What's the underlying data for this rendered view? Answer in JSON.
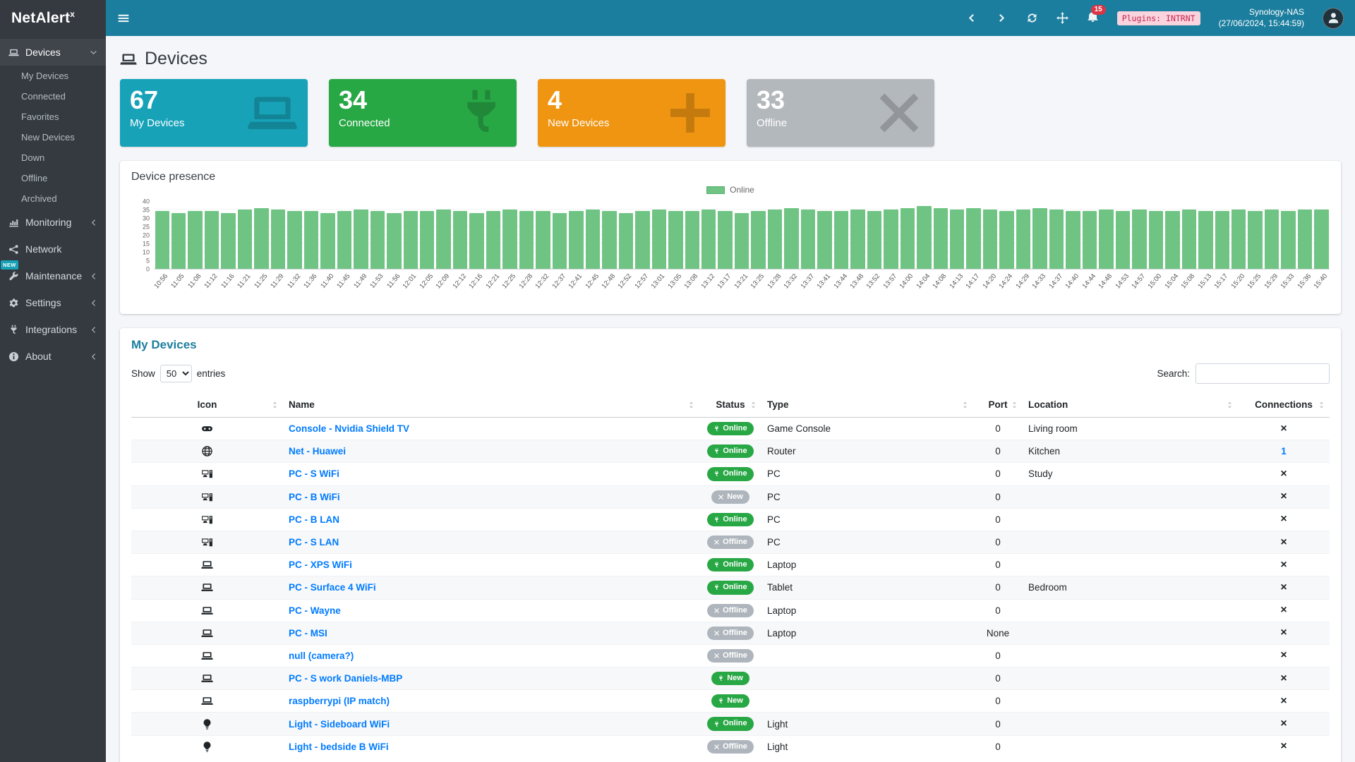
{
  "navbar": {
    "brand_main": "NetAlert",
    "brand_sup": "x",
    "bell_count": "15",
    "plugins_badge": "Plugins: INTRNT",
    "host": "Synology-NAS",
    "timestamp": "(27/06/2024, 15:44:59)"
  },
  "sidebar": {
    "items": [
      {
        "label": "Devices",
        "icon": "laptop-icon",
        "chevron": "down",
        "active": true,
        "children": [
          "My Devices",
          "Connected",
          "Favorites",
          "New Devices",
          "Down",
          "Offline",
          "Archived"
        ]
      },
      {
        "label": "Monitoring",
        "icon": "chart-icon",
        "chevron": "left"
      },
      {
        "label": "Network",
        "icon": "network-icon",
        "chevron": null
      },
      {
        "label": "Maintenance",
        "icon": "tools-icon",
        "chevron": "left",
        "badge": "NEW"
      },
      {
        "label": "Settings",
        "icon": "gear-icon",
        "chevron": "left"
      },
      {
        "label": "Integrations",
        "icon": "plug-icon",
        "chevron": "left"
      },
      {
        "label": "About",
        "icon": "info-icon",
        "chevron": "left"
      }
    ]
  },
  "page": {
    "title": "Devices"
  },
  "infoboxes": [
    {
      "value": "67",
      "label": "My Devices",
      "color": "#17a2b8",
      "icon": "laptop-icon"
    },
    {
      "value": "34",
      "label": "Connected",
      "color": "#28a745",
      "icon": "plug-icon"
    },
    {
      "value": "4",
      "label": "New Devices",
      "color": "#f09511",
      "icon": "plus-icon"
    },
    {
      "value": "33",
      "label": "Offline",
      "color": "#b3b8bc",
      "icon": "times-icon"
    }
  ],
  "chart_card": {
    "title": "Device presence"
  },
  "chart_data": {
    "type": "bar",
    "title": "Device presence",
    "legend": [
      {
        "name": "Online",
        "color": "#6fc484"
      }
    ],
    "legend_position": "top-center",
    "xlabel": "",
    "ylabel": "",
    "ylim": [
      0,
      40
    ],
    "ytick_step": 5,
    "grid": true,
    "x": [
      "10:56",
      "11:05",
      "11:08",
      "11:12",
      "11:16",
      "11:21",
      "11:25",
      "11:29",
      "11:32",
      "11:36",
      "11:40",
      "11:45",
      "11:49",
      "11:53",
      "11:56",
      "12:01",
      "12:05",
      "12:09",
      "12:12",
      "12:16",
      "12:21",
      "12:25",
      "12:28",
      "12:32",
      "12:37",
      "12:41",
      "12:45",
      "12:48",
      "12:52",
      "12:57",
      "13:01",
      "13:05",
      "13:08",
      "13:12",
      "13:17",
      "13:21",
      "13:25",
      "13:28",
      "13:32",
      "13:37",
      "13:41",
      "13:44",
      "13:48",
      "13:52",
      "13:57",
      "14:00",
      "14:04",
      "14:08",
      "14:13",
      "14:17",
      "14:20",
      "14:24",
      "14:29",
      "14:33",
      "14:37",
      "14:40",
      "14:44",
      "14:48",
      "14:53",
      "14:57",
      "15:00",
      "15:04",
      "15:08",
      "15:13",
      "15:17",
      "15:20",
      "15:25",
      "15:29",
      "15:33",
      "15:36",
      "15:40"
    ],
    "series": [
      {
        "name": "Online",
        "color": "#6fc484",
        "values": [
          34,
          33,
          34,
          34,
          33,
          35,
          36,
          35,
          34,
          34,
          33,
          34,
          35,
          34,
          33,
          34,
          34,
          35,
          34,
          33,
          34,
          35,
          34,
          34,
          33,
          34,
          35,
          34,
          33,
          34,
          35,
          34,
          34,
          35,
          34,
          33,
          34,
          35,
          36,
          35,
          34,
          34,
          35,
          34,
          35,
          36,
          37,
          36,
          35,
          36,
          35,
          34,
          35,
          36,
          35,
          34,
          34,
          35,
          34,
          35,
          34,
          34,
          35,
          34,
          34,
          35,
          34,
          35,
          34,
          35,
          35
        ]
      }
    ]
  },
  "devices_card": {
    "title": "My Devices",
    "show_label": "Show",
    "entries_label": "entries",
    "page_size": "50",
    "search_label": "Search:",
    "search_value": "",
    "columns": [
      "Icon",
      "Name",
      "Status",
      "Type",
      "Port",
      "Location",
      "Connections"
    ],
    "rows": [
      {
        "icon": "gamepad-icon",
        "name": "Console - Nvidia Shield TV",
        "status_label": "Online",
        "status_type": "online",
        "type": "Game Console",
        "port": "0",
        "location": "Living room",
        "connections": "x"
      },
      {
        "icon": "globe-icon",
        "name": "Net - Huawei",
        "status_label": "Online",
        "status_type": "online",
        "type": "Router",
        "port": "0",
        "location": "Kitchen",
        "connections": "1"
      },
      {
        "icon": "desktop-icon",
        "name": "PC - S WiFi",
        "status_label": "Online",
        "status_type": "online",
        "type": "PC",
        "port": "0",
        "location": "Study",
        "connections": "x"
      },
      {
        "icon": "desktop-icon",
        "name": "PC - B WiFi",
        "status_label": "New",
        "status_type": "new-gray",
        "type": "PC",
        "port": "0",
        "location": "",
        "connections": "x"
      },
      {
        "icon": "desktop-icon",
        "name": "PC - B LAN",
        "status_label": "Online",
        "status_type": "online",
        "type": "PC",
        "port": "0",
        "location": "",
        "connections": "x"
      },
      {
        "icon": "desktop-icon",
        "name": "PC - S LAN",
        "status_label": "Offline",
        "status_type": "offline",
        "type": "PC",
        "port": "0",
        "location": "",
        "connections": "x"
      },
      {
        "icon": "laptop-icon",
        "name": "PC - XPS WiFi",
        "status_label": "Online",
        "status_type": "online",
        "type": "Laptop",
        "port": "0",
        "location": "",
        "connections": "x"
      },
      {
        "icon": "laptop-icon",
        "name": "PC - Surface 4 WiFi",
        "status_label": "Online",
        "status_type": "online",
        "type": "Tablet",
        "port": "0",
        "location": "Bedroom",
        "connections": "x"
      },
      {
        "icon": "laptop-icon",
        "name": "PC - Wayne",
        "status_label": "Offline",
        "status_type": "offline",
        "type": "Laptop",
        "port": "0",
        "location": "",
        "connections": "x"
      },
      {
        "icon": "laptop-icon",
        "name": "PC - MSI",
        "status_label": "Offline",
        "status_type": "offline",
        "type": "Laptop",
        "port": "None",
        "location": "",
        "connections": "x"
      },
      {
        "icon": "laptop-icon",
        "name": "null (camera?)",
        "status_label": "Offline",
        "status_type": "offline",
        "type": "",
        "port": "0",
        "location": "",
        "connections": "x"
      },
      {
        "icon": "laptop-icon",
        "name": "PC - S work Daniels-MBP",
        "status_label": "New",
        "status_type": "new",
        "type": "",
        "port": "0",
        "location": "",
        "connections": "x"
      },
      {
        "icon": "laptop-icon",
        "name": "raspberrypi (IP match)",
        "status_label": "New",
        "status_type": "new",
        "type": "",
        "port": "0",
        "location": "",
        "connections": "x"
      },
      {
        "icon": "lightbulb-icon",
        "name": "Light - Sideboard WiFi",
        "status_label": "Online",
        "status_type": "online",
        "type": "Light",
        "port": "0",
        "location": "",
        "connections": "x"
      },
      {
        "icon": "lightbulb-icon",
        "name": "Light - bedside B WiFi",
        "status_label": "Offline",
        "status_type": "offline",
        "type": "Light",
        "port": "0",
        "location": "",
        "connections": "x"
      }
    ]
  }
}
